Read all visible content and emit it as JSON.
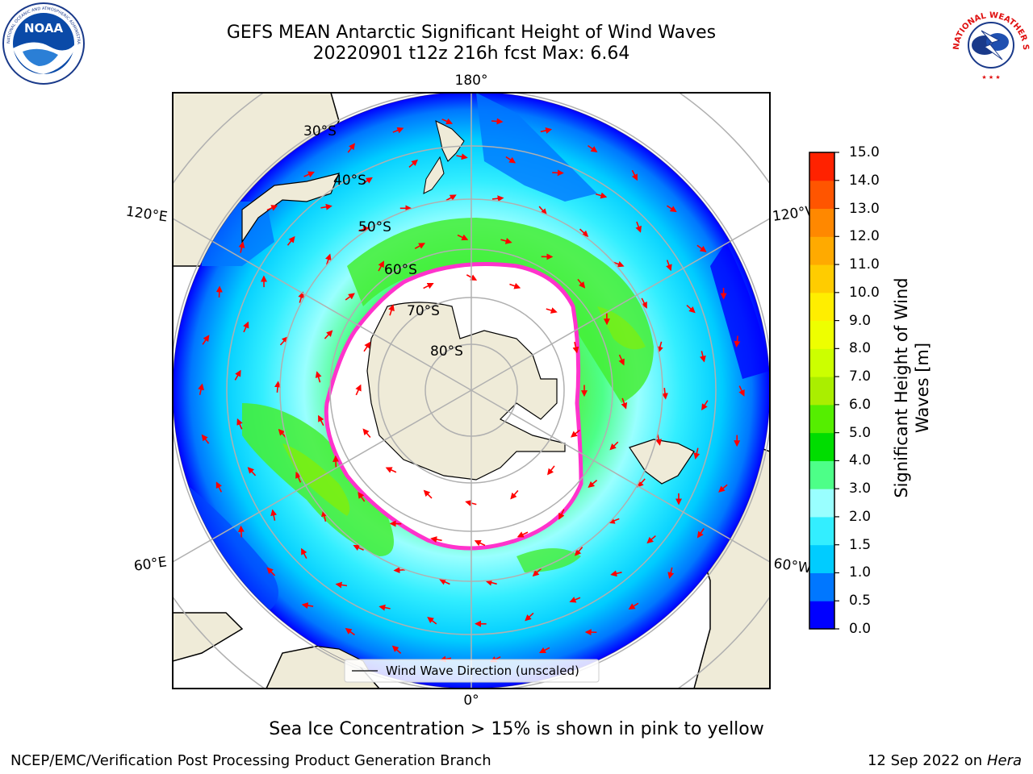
{
  "title": {
    "line1": "GEFS MEAN Antarctic Significant Height of Wind Waves",
    "line2": "20220901 t12z 216h fcst   Max: 6.64"
  },
  "logos": {
    "noaa": {
      "icon": "noaa-logo",
      "text": "NOAA",
      "ring_text": "NATIONAL OCEANIC AND ATMOSPHERIC ADMINISTRATION · U.S. DEPARTMENT OF COMMERCE"
    },
    "nws": {
      "icon": "nws-logo",
      "ring_text": "NATIONAL WEATHER SERVICE"
    }
  },
  "map": {
    "projection": "south-polar-stereographic",
    "longitude_labels": {
      "top": "180°",
      "bottom": "0°",
      "upper_left": "120°E",
      "lower_left": "60°E",
      "upper_right": "120°W",
      "lower_right": "60°W"
    },
    "latitude_labels": [
      "30°S",
      "40°S",
      "50°S",
      "60°S",
      "70°S",
      "80°S"
    ],
    "legend": {
      "label": "Wind Wave Direction (unscaled)"
    },
    "colors": {
      "land": "#efebd8",
      "sea_ice_edge": "#ff33cc",
      "arrow": "#ff0000",
      "grid": "#b0b0b0"
    }
  },
  "colorbar": {
    "label": "Significant Height of Wind Waves [m]",
    "ticks": [
      "0.0",
      "0.5",
      "1.0",
      "1.5",
      "2.0",
      "3.0",
      "4.0",
      "5.0",
      "6.0",
      "7.0",
      "8.0",
      "9.0",
      "10.0",
      "11.0",
      "12.0",
      "13.0",
      "14.0",
      "15.0"
    ],
    "colors": [
      "#0000ff",
      "#0077ff",
      "#00ccff",
      "#33eeff",
      "#99ffff",
      "#4dff88",
      "#00dd00",
      "#55ee00",
      "#aaee00",
      "#ccff00",
      "#eeff00",
      "#ffee00",
      "#ffcc00",
      "#ffaa00",
      "#ff8800",
      "#ff5500",
      "#ff2200"
    ]
  },
  "footer": {
    "sea_ice_note": "Sea Ice Concentration > 15% is shown in pink to yellow",
    "credit_left": "NCEP/EMC/Verification Post Processing Product Generation Branch",
    "date": "12 Sep 2022 on",
    "host": "Hera"
  }
}
